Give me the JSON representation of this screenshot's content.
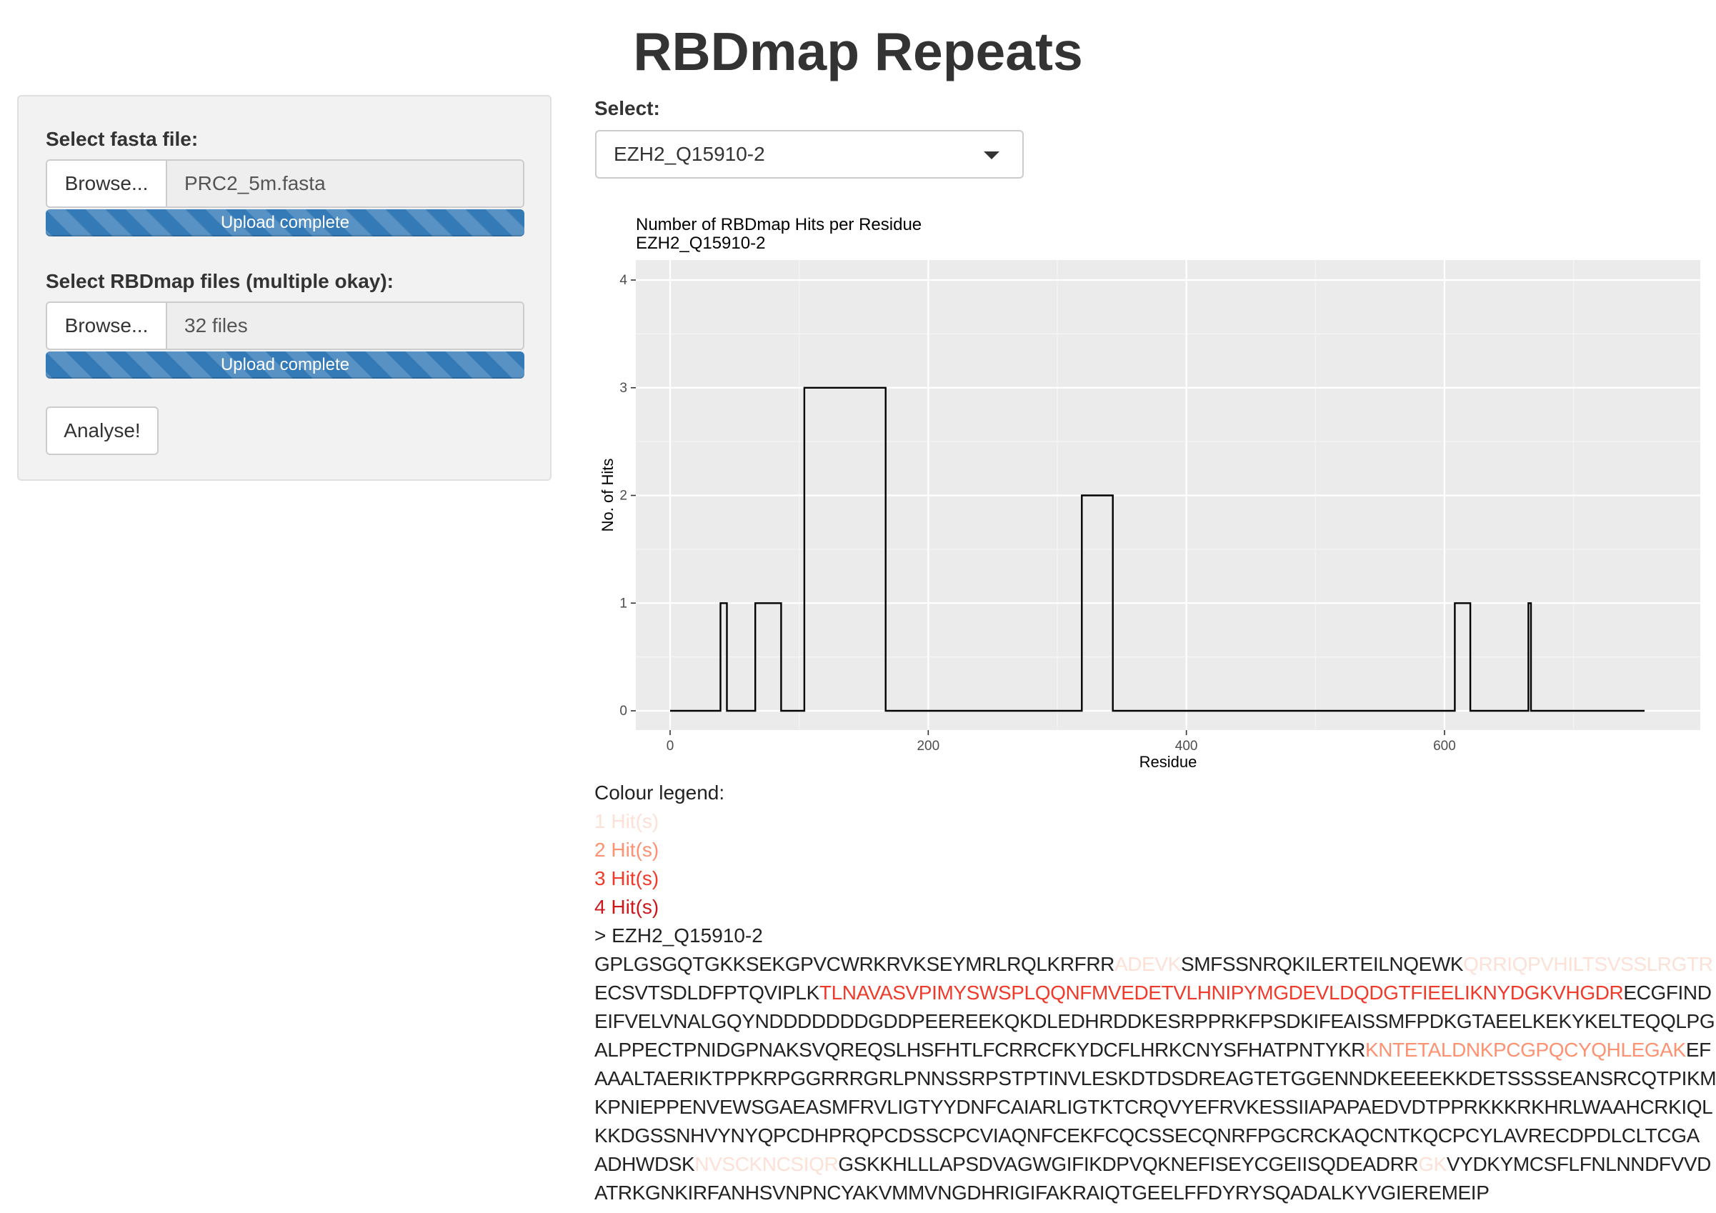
{
  "app": {
    "title": "RBDmap Repeats"
  },
  "sidebar": {
    "fasta_label": "Select fasta file:",
    "fasta_browse": "Browse...",
    "fasta_filename": "PRC2_5m.fasta",
    "fasta_progress": "Upload complete",
    "rbd_label": "Select RBDmap files (multiple okay):",
    "rbd_browse": "Browse...",
    "rbd_filename": "32 files",
    "rbd_progress": "Upload complete",
    "analyse_button": "Analyse!"
  },
  "main": {
    "select_label": "Select:",
    "select_value": "EZH2_Q15910-2"
  },
  "chart_data": {
    "type": "line",
    "title": "Number of RBDmap Hits per Residue",
    "subtitle": "EZH2_Q15910-2",
    "xlabel": "Residue",
    "ylabel": "No. of Hits",
    "xlim": [
      0,
      755
    ],
    "ylim": [
      0,
      4
    ],
    "x_ticks": [
      0,
      200,
      400,
      600
    ],
    "y_ticks": [
      0,
      1,
      2,
      3,
      4
    ],
    "grid": true,
    "series": [
      {
        "step_points": [
          [
            0,
            0
          ],
          [
            39,
            0
          ],
          [
            39,
            1
          ],
          [
            44,
            1
          ],
          [
            44,
            0
          ],
          [
            66,
            0
          ],
          [
            66,
            1
          ],
          [
            86,
            1
          ],
          [
            86,
            0
          ],
          [
            104,
            0
          ],
          [
            104,
            3
          ],
          [
            167,
            3
          ],
          [
            167,
            0
          ],
          [
            319,
            0
          ],
          [
            319,
            2
          ],
          [
            343,
            2
          ],
          [
            343,
            0
          ],
          [
            608,
            0
          ],
          [
            608,
            1
          ],
          [
            620,
            1
          ],
          [
            620,
            0
          ],
          [
            665,
            0
          ],
          [
            665,
            1
          ],
          [
            667,
            1
          ],
          [
            667,
            0
          ],
          [
            755,
            0
          ]
        ]
      }
    ]
  },
  "legend": {
    "title": "Colour legend:",
    "items": [
      {
        "label": "1 Hit(s)",
        "level": 1
      },
      {
        "label": "2 Hit(s)",
        "level": 2
      },
      {
        "label": "3 Hit(s)",
        "level": 3
      },
      {
        "label": "4 Hit(s)",
        "level": 4
      }
    ],
    "colors": {
      "1": "#fde0d6",
      "2": "#fc9272",
      "3": "#ef3b2c",
      "4": "#cb181d"
    }
  },
  "sequence": {
    "header": "> EZH2_Q15910-2",
    "lines": [
      [
        {
          "t": "GPLGSGQTGKKSEKGPVCWRKRVKSEYMRLRQLKRFRR",
          "h": 0
        },
        {
          "t": "ADEVK",
          "h": 1
        },
        {
          "t": "SMFSSNRQKILERTEILNQEWK",
          "h": 0
        },
        {
          "t": "QRRIQPVHILTSVSSLRGTR",
          "h": 1
        }
      ],
      [
        {
          "t": "ECSVTSDLDFPTQVIPLK",
          "h": 0
        },
        {
          "t": "TLNAVASVPIMYSWSPLQQNFMVEDETVLHNIPYMGDEVLDQDGTFIEELIKNYDGKVHGDR",
          "h": 3
        },
        {
          "t": "ECGFIND",
          "h": 0
        }
      ],
      [
        {
          "t": "EIFVELVNALGQYNDDDDDDDGDDPEEREEKQKDLEDHRDDKESRPPRKFPSDKIFEAISSMFPDKGTAEELKEKYKELTEQQLPG",
          "h": 0
        }
      ],
      [
        {
          "t": "ALPPECTPNIDGPNAKSVQREQSLHSFHTLFCRRCFKYDCFLHRKCNYSFHATPNTYKR",
          "h": 0
        },
        {
          "t": "KNTETALDNKPCGPQCYQHLEGAK",
          "h": 2
        },
        {
          "t": "EF",
          "h": 0
        }
      ],
      [
        {
          "t": "AAALTAERIKTPPKRPGGRRRGRLPNNSSRPSTPTINVLESKDTDSDREAGTETGGENNDKEEEEKKDETSSSSEANSRCQTPIKM",
          "h": 0
        }
      ],
      [
        {
          "t": "KPNIEPPENVEWSGAEASMFRVLIGTYYDNFCAIARLIGTKTCRQVYEFRVKESSIIAPAPAEDVDTPPRKKKRKHRLWAAHCRKIQL",
          "h": 0
        }
      ],
      [
        {
          "t": "KKDGSSNHVYNYQPCDHPRQPCDSSCPCVIAQNFCEKFCQCSSECQNRFPGCRCKAQCNTKQCPCYLAVRECDPDLCLTCGA",
          "h": 0
        }
      ],
      [
        {
          "t": "ADHWDSK",
          "h": 0
        },
        {
          "t": "NVSCKNCSIQR",
          "h": 1
        },
        {
          "t": "GSKKHLLLAPSDVAGWGIFIKDPVQKNEFISEYCGEIISQDEADRR",
          "h": 0
        },
        {
          "t": "GK",
          "h": 1
        },
        {
          "t": "VYDKYMCSFLFNLNNDFVVD",
          "h": 0
        }
      ],
      [
        {
          "t": "ATRKGNKIRFANHSVNPNCYAKVMMVNGDHRIGIFAKRAIQTGEELFFDYRYSQADALKYVGIEREMEIP",
          "h": 0
        }
      ]
    ]
  }
}
